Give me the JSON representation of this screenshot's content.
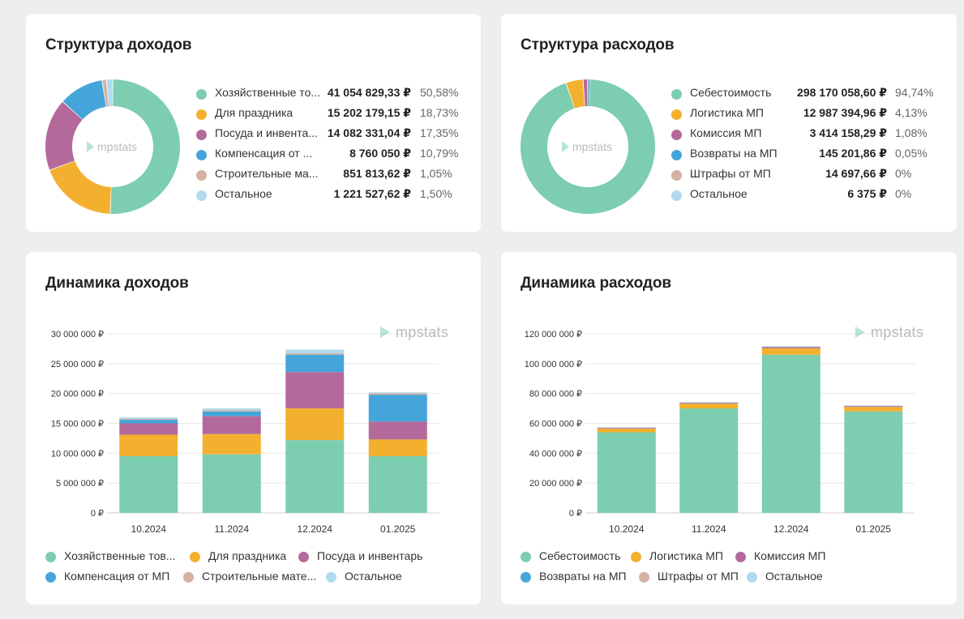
{
  "colors": {
    "green": "#7dcdb0",
    "orange": "#f3b02f",
    "purple": "#b36a9b",
    "blue": "#45a5da",
    "tan": "#d4b1a2",
    "lightblue": "#b0daee",
    "watermark": "#bbbbbb",
    "grid": "#e6e6e6"
  },
  "brand": {
    "watermark": "mpstats",
    "logo_icon": "mpstats-logo-icon"
  },
  "income_structure": {
    "title": "Структура доходов",
    "items": [
      {
        "name": "Хозяйственные товары",
        "display": "Хозяйственные то...",
        "value": "41 054 829,33 ₽",
        "pct": "50,58%",
        "share": 50.58,
        "color": "#7dcdb0"
      },
      {
        "name": "Для праздника",
        "display": "Для праздника",
        "value": "15 202 179,15 ₽",
        "pct": "18,73%",
        "share": 18.73,
        "color": "#f3b02f"
      },
      {
        "name": "Посуда и инвентарь",
        "display": "Посуда и инвента...",
        "value": "14 082 331,04 ₽",
        "pct": "17,35%",
        "share": 17.35,
        "color": "#b36a9b"
      },
      {
        "name": "Компенсация от МП",
        "display": "Компенсация от ...",
        "value": "8 760 050 ₽",
        "pct": "10,79%",
        "share": 10.79,
        "color": "#45a5da"
      },
      {
        "name": "Строительные материалы",
        "display": "Строительные ма...",
        "value": "851 813,62 ₽",
        "pct": "1,05%",
        "share": 1.05,
        "color": "#d4b1a2"
      },
      {
        "name": "Остальное",
        "display": "Остальное",
        "value": "1 221 527,62 ₽",
        "pct": "1,50%",
        "share": 1.5,
        "color": "#b0daee"
      }
    ]
  },
  "expense_structure": {
    "title": "Структура расходов",
    "items": [
      {
        "name": "Себестоимость",
        "display": "Себестоимость",
        "value": "298 170 058,60 ₽",
        "pct": "94,74%",
        "share": 94.74,
        "color": "#7dcdb0"
      },
      {
        "name": "Логистика МП",
        "display": "Логистика МП",
        "value": "12 987 394,96 ₽",
        "pct": "4,13%",
        "share": 4.13,
        "color": "#f3b02f"
      },
      {
        "name": "Комиссия МП",
        "display": "Комиссия МП",
        "value": "3 414 158,29 ₽",
        "pct": "1,08%",
        "share": 1.08,
        "color": "#b36a9b"
      },
      {
        "name": "Возвраты на МП",
        "display": "Возвраты на МП",
        "value": "145 201,86 ₽",
        "pct": "0,05%",
        "share": 0.05,
        "color": "#45a5da"
      },
      {
        "name": "Штрафы от МП",
        "display": "Штрафы от МП",
        "value": "14 697,66 ₽",
        "pct": "0%",
        "share": 0.005,
        "color": "#d4b1a2"
      },
      {
        "name": "Остальное",
        "display": "Остальное",
        "value": "6 375 ₽",
        "pct": "0%",
        "share": 0.002,
        "color": "#b0daee"
      }
    ]
  },
  "chart_data": [
    {
      "type": "pie",
      "title": "Структура доходов",
      "categories": [
        "Хозяйственные товары",
        "Для праздника",
        "Посуда и инвентарь",
        "Компенсация от МП",
        "Строительные материалы",
        "Остальное"
      ],
      "values": [
        41054829.33,
        15202179.15,
        14082331.04,
        8760050,
        851813.62,
        1221527.62
      ]
    },
    {
      "type": "pie",
      "title": "Структура расходов",
      "categories": [
        "Себестоимость",
        "Логистика МП",
        "Комиссия МП",
        "Возвраты на МП",
        "Штрафы от МП",
        "Остальное"
      ],
      "values": [
        298170058.6,
        12987394.96,
        3414158.29,
        145201.86,
        14697.66,
        6375
      ]
    },
    {
      "type": "bar",
      "stacked": true,
      "title": "Динамика доходов",
      "categories": [
        "10.2024",
        "11.2024",
        "12.2024",
        "01.2025"
      ],
      "ylim": [
        0,
        30000000
      ],
      "yticks": [
        0,
        5000000,
        10000000,
        15000000,
        20000000,
        25000000,
        30000000
      ],
      "ytick_labels": [
        "0 ₽",
        "5 000 000 ₽",
        "10 000 000 ₽",
        "15 000 000 ₽",
        "20 000 000 ₽",
        "25 000 000 ₽",
        "30 000 000 ₽"
      ],
      "legend_position": "bottom",
      "series": [
        {
          "name": "Хозяйственные товары",
          "legend": "Хозяйственные тов...",
          "color": "#7dcdb0",
          "values": [
            9500000,
            9800000,
            12200000,
            9500000
          ]
        },
        {
          "name": "Для праздника",
          "legend": "Для праздника",
          "color": "#f3b02f",
          "values": [
            3600000,
            3400000,
            5300000,
            2800000
          ]
        },
        {
          "name": "Посуда и инвентарь",
          "legend": "Посуда и инвентарь",
          "color": "#b36a9b",
          "values": [
            1900000,
            3000000,
            6100000,
            3000000
          ]
        },
        {
          "name": "Компенсация от МП",
          "legend": "Компенсация от МП",
          "color": "#45a5da",
          "values": [
            600000,
            800000,
            2900000,
            4500000
          ]
        },
        {
          "name": "Строительные материалы",
          "legend": "Строительные мате...",
          "color": "#d4b1a2",
          "values": [
            150000,
            200000,
            250000,
            250000
          ]
        },
        {
          "name": "Остальное",
          "legend": "Остальное",
          "color": "#b0daee",
          "values": [
            250000,
            300000,
            600000,
            150000
          ]
        }
      ]
    },
    {
      "type": "bar",
      "stacked": true,
      "title": "Динамика расходов",
      "categories": [
        "10.2024",
        "11.2024",
        "12.2024",
        "01.2025"
      ],
      "ylim": [
        0,
        120000000
      ],
      "yticks": [
        0,
        20000000,
        40000000,
        60000000,
        80000000,
        100000000,
        120000000
      ],
      "ytick_labels": [
        "0 ₽",
        "20 000 000 ₽",
        "40 000 000 ₽",
        "60 000 000 ₽",
        "80 000 000 ₽",
        "100 000 000 ₽",
        "120 000 000 ₽"
      ],
      "legend_position": "bottom",
      "series": [
        {
          "name": "Себестоимость",
          "legend": "Себестоимость",
          "color": "#7dcdb0",
          "values": [
            54000000,
            70000000,
            106000000,
            68000000
          ]
        },
        {
          "name": "Логистика МП",
          "legend": "Логистика МП",
          "color": "#f3b02f",
          "values": [
            2500000,
            3200000,
            4300000,
            3000000
          ]
        },
        {
          "name": "Комиссия МП",
          "legend": "Комиссия МП",
          "color": "#b36a9b",
          "values": [
            700000,
            800000,
            1100000,
            800000
          ]
        },
        {
          "name": "Возвраты на МП",
          "legend": "Возвраты на МП",
          "color": "#45a5da",
          "values": [
            30000,
            40000,
            50000,
            30000
          ]
        },
        {
          "name": "Штрафы от МП",
          "legend": "Штрафы от МП",
          "color": "#d4b1a2",
          "values": [
            4000,
            4000,
            4000,
            3000
          ]
        },
        {
          "name": "Остальное",
          "legend": "Остальное",
          "color": "#b0daee",
          "values": [
            2000,
            2000,
            2000,
            1000
          ]
        }
      ]
    }
  ]
}
